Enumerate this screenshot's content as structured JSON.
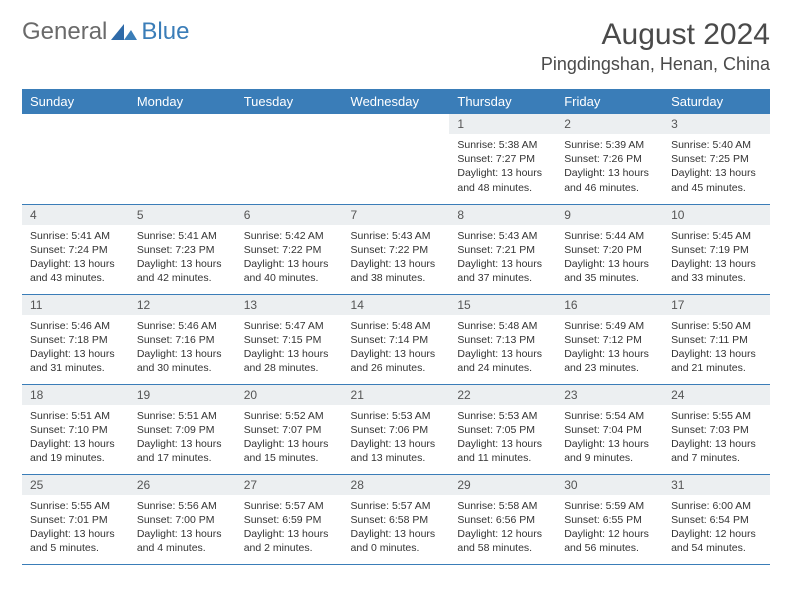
{
  "logo": {
    "general": "General",
    "blue": "Blue"
  },
  "title": "August 2024",
  "location": "Pingdingshan, Henan, China",
  "colors": {
    "header_bg": "#3a7db8",
    "header_fg": "#ffffff",
    "daynum_bg": "#eceff1",
    "border": "#3a7db8",
    "text": "#333333"
  },
  "weekdays": [
    "Sunday",
    "Monday",
    "Tuesday",
    "Wednesday",
    "Thursday",
    "Friday",
    "Saturday"
  ],
  "weeks": [
    [
      null,
      null,
      null,
      null,
      {
        "n": "1",
        "sr": "Sunrise: 5:38 AM",
        "ss": "Sunset: 7:27 PM",
        "dl": "Daylight: 13 hours and 48 minutes."
      },
      {
        "n": "2",
        "sr": "Sunrise: 5:39 AM",
        "ss": "Sunset: 7:26 PM",
        "dl": "Daylight: 13 hours and 46 minutes."
      },
      {
        "n": "3",
        "sr": "Sunrise: 5:40 AM",
        "ss": "Sunset: 7:25 PM",
        "dl": "Daylight: 13 hours and 45 minutes."
      }
    ],
    [
      {
        "n": "4",
        "sr": "Sunrise: 5:41 AM",
        "ss": "Sunset: 7:24 PM",
        "dl": "Daylight: 13 hours and 43 minutes."
      },
      {
        "n": "5",
        "sr": "Sunrise: 5:41 AM",
        "ss": "Sunset: 7:23 PM",
        "dl": "Daylight: 13 hours and 42 minutes."
      },
      {
        "n": "6",
        "sr": "Sunrise: 5:42 AM",
        "ss": "Sunset: 7:22 PM",
        "dl": "Daylight: 13 hours and 40 minutes."
      },
      {
        "n": "7",
        "sr": "Sunrise: 5:43 AM",
        "ss": "Sunset: 7:22 PM",
        "dl": "Daylight: 13 hours and 38 minutes."
      },
      {
        "n": "8",
        "sr": "Sunrise: 5:43 AM",
        "ss": "Sunset: 7:21 PM",
        "dl": "Daylight: 13 hours and 37 minutes."
      },
      {
        "n": "9",
        "sr": "Sunrise: 5:44 AM",
        "ss": "Sunset: 7:20 PM",
        "dl": "Daylight: 13 hours and 35 minutes."
      },
      {
        "n": "10",
        "sr": "Sunrise: 5:45 AM",
        "ss": "Sunset: 7:19 PM",
        "dl": "Daylight: 13 hours and 33 minutes."
      }
    ],
    [
      {
        "n": "11",
        "sr": "Sunrise: 5:46 AM",
        "ss": "Sunset: 7:18 PM",
        "dl": "Daylight: 13 hours and 31 minutes."
      },
      {
        "n": "12",
        "sr": "Sunrise: 5:46 AM",
        "ss": "Sunset: 7:16 PM",
        "dl": "Daylight: 13 hours and 30 minutes."
      },
      {
        "n": "13",
        "sr": "Sunrise: 5:47 AM",
        "ss": "Sunset: 7:15 PM",
        "dl": "Daylight: 13 hours and 28 minutes."
      },
      {
        "n": "14",
        "sr": "Sunrise: 5:48 AM",
        "ss": "Sunset: 7:14 PM",
        "dl": "Daylight: 13 hours and 26 minutes."
      },
      {
        "n": "15",
        "sr": "Sunrise: 5:48 AM",
        "ss": "Sunset: 7:13 PM",
        "dl": "Daylight: 13 hours and 24 minutes."
      },
      {
        "n": "16",
        "sr": "Sunrise: 5:49 AM",
        "ss": "Sunset: 7:12 PM",
        "dl": "Daylight: 13 hours and 23 minutes."
      },
      {
        "n": "17",
        "sr": "Sunrise: 5:50 AM",
        "ss": "Sunset: 7:11 PM",
        "dl": "Daylight: 13 hours and 21 minutes."
      }
    ],
    [
      {
        "n": "18",
        "sr": "Sunrise: 5:51 AM",
        "ss": "Sunset: 7:10 PM",
        "dl": "Daylight: 13 hours and 19 minutes."
      },
      {
        "n": "19",
        "sr": "Sunrise: 5:51 AM",
        "ss": "Sunset: 7:09 PM",
        "dl": "Daylight: 13 hours and 17 minutes."
      },
      {
        "n": "20",
        "sr": "Sunrise: 5:52 AM",
        "ss": "Sunset: 7:07 PM",
        "dl": "Daylight: 13 hours and 15 minutes."
      },
      {
        "n": "21",
        "sr": "Sunrise: 5:53 AM",
        "ss": "Sunset: 7:06 PM",
        "dl": "Daylight: 13 hours and 13 minutes."
      },
      {
        "n": "22",
        "sr": "Sunrise: 5:53 AM",
        "ss": "Sunset: 7:05 PM",
        "dl": "Daylight: 13 hours and 11 minutes."
      },
      {
        "n": "23",
        "sr": "Sunrise: 5:54 AM",
        "ss": "Sunset: 7:04 PM",
        "dl": "Daylight: 13 hours and 9 minutes."
      },
      {
        "n": "24",
        "sr": "Sunrise: 5:55 AM",
        "ss": "Sunset: 7:03 PM",
        "dl": "Daylight: 13 hours and 7 minutes."
      }
    ],
    [
      {
        "n": "25",
        "sr": "Sunrise: 5:55 AM",
        "ss": "Sunset: 7:01 PM",
        "dl": "Daylight: 13 hours and 5 minutes."
      },
      {
        "n": "26",
        "sr": "Sunrise: 5:56 AM",
        "ss": "Sunset: 7:00 PM",
        "dl": "Daylight: 13 hours and 4 minutes."
      },
      {
        "n": "27",
        "sr": "Sunrise: 5:57 AM",
        "ss": "Sunset: 6:59 PM",
        "dl": "Daylight: 13 hours and 2 minutes."
      },
      {
        "n": "28",
        "sr": "Sunrise: 5:57 AM",
        "ss": "Sunset: 6:58 PM",
        "dl": "Daylight: 13 hours and 0 minutes."
      },
      {
        "n": "29",
        "sr": "Sunrise: 5:58 AM",
        "ss": "Sunset: 6:56 PM",
        "dl": "Daylight: 12 hours and 58 minutes."
      },
      {
        "n": "30",
        "sr": "Sunrise: 5:59 AM",
        "ss": "Sunset: 6:55 PM",
        "dl": "Daylight: 12 hours and 56 minutes."
      },
      {
        "n": "31",
        "sr": "Sunrise: 6:00 AM",
        "ss": "Sunset: 6:54 PM",
        "dl": "Daylight: 12 hours and 54 minutes."
      }
    ]
  ]
}
